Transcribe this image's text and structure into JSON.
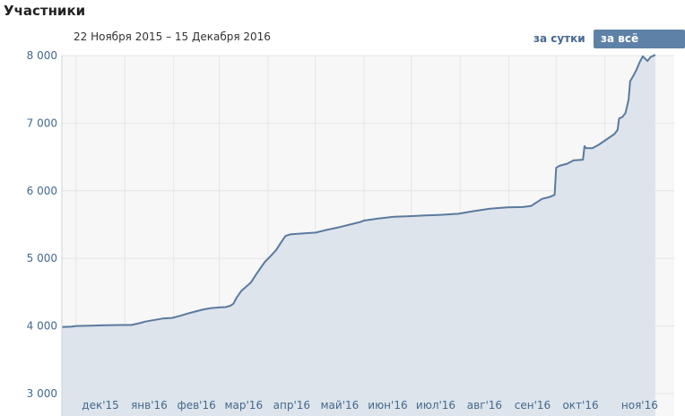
{
  "header": {
    "title": "Участники",
    "date_range": "22 Ноября 2015 – 15 Декабря 2016",
    "button_day": "за сутки",
    "button_all": "за всё время"
  },
  "colors": {
    "line": "#5b7a9e",
    "area": "#dde4ec",
    "plot_bg": "#f7f7f7",
    "grid": "#e6e6e6",
    "tick_text": "#45688e",
    "active_button": "#5e81a8"
  },
  "chart_data": {
    "type": "area",
    "title": "Участники",
    "xlabel": "",
    "ylabel": "",
    "ylim": [
      3000,
      8000
    ],
    "yticks": [
      3000,
      4000,
      5000,
      6000,
      7000,
      8000
    ],
    "ytick_labels": [
      "3 000",
      "4 000",
      "5 000",
      "6 000",
      "7 000",
      "8 000"
    ],
    "xlim": [
      "2015-11-22",
      "2016-12-15"
    ],
    "month_ticks": [
      {
        "date": "2015-12-01",
        "label": "дек'15"
      },
      {
        "date": "2016-01-01",
        "label": "янв'16"
      },
      {
        "date": "2016-02-01",
        "label": "фев'16"
      },
      {
        "date": "2016-03-01",
        "label": "мар'16"
      },
      {
        "date": "2016-04-01",
        "label": "апр'16"
      },
      {
        "date": "2016-05-01",
        "label": "май'16"
      },
      {
        "date": "2016-06-01",
        "label": "июн'16"
      },
      {
        "date": "2016-07-01",
        "label": "июл'16"
      },
      {
        "date": "2016-08-01",
        "label": "авг'16"
      },
      {
        "date": "2016-09-01",
        "label": "сен'16"
      },
      {
        "date": "2016-10-01",
        "label": "окт'16"
      },
      {
        "date": "2016-11-01",
        "label": "ноя'16"
      }
    ],
    "grid": true,
    "series": [
      {
        "points": [
          [
            "2015-11-22",
            3985
          ],
          [
            "2015-11-28",
            3990
          ],
          [
            "2015-12-01",
            4000
          ],
          [
            "2015-12-10",
            4005
          ],
          [
            "2015-12-20",
            4012
          ],
          [
            "2015-12-31",
            4015
          ],
          [
            "2016-01-05",
            4015
          ],
          [
            "2016-01-10",
            4040
          ],
          [
            "2016-01-14",
            4065
          ],
          [
            "2016-01-20",
            4090
          ],
          [
            "2016-01-25",
            4110
          ],
          [
            "2016-01-31",
            4120
          ],
          [
            "2016-02-05",
            4150
          ],
          [
            "2016-02-10",
            4185
          ],
          [
            "2016-02-15",
            4215
          ],
          [
            "2016-02-20",
            4245
          ],
          [
            "2016-02-25",
            4265
          ],
          [
            "2016-03-01",
            4275
          ],
          [
            "2016-03-05",
            4280
          ],
          [
            "2016-03-08",
            4300
          ],
          [
            "2016-03-10",
            4330
          ],
          [
            "2016-03-12",
            4420
          ],
          [
            "2016-03-15",
            4520
          ],
          [
            "2016-03-18",
            4580
          ],
          [
            "2016-03-21",
            4640
          ],
          [
            "2016-03-24",
            4750
          ],
          [
            "2016-03-27",
            4850
          ],
          [
            "2016-03-30",
            4950
          ],
          [
            "2016-04-02",
            5020
          ],
          [
            "2016-04-06",
            5120
          ],
          [
            "2016-04-09",
            5230
          ],
          [
            "2016-04-12",
            5330
          ],
          [
            "2016-04-15",
            5355
          ],
          [
            "2016-04-20",
            5365
          ],
          [
            "2016-04-27",
            5375
          ],
          [
            "2016-05-01",
            5380
          ],
          [
            "2016-05-08",
            5420
          ],
          [
            "2016-05-15",
            5455
          ],
          [
            "2016-05-22",
            5495
          ],
          [
            "2016-05-29",
            5535
          ],
          [
            "2016-06-01",
            5560
          ],
          [
            "2016-06-10",
            5590
          ],
          [
            "2016-06-20",
            5615
          ],
          [
            "2016-06-30",
            5625
          ],
          [
            "2016-07-10",
            5635
          ],
          [
            "2016-07-20",
            5645
          ],
          [
            "2016-07-31",
            5660
          ],
          [
            "2016-08-10",
            5700
          ],
          [
            "2016-08-20",
            5735
          ],
          [
            "2016-08-31",
            5755
          ],
          [
            "2016-09-10",
            5760
          ],
          [
            "2016-09-15",
            5775
          ],
          [
            "2016-09-18",
            5820
          ],
          [
            "2016-09-22",
            5880
          ],
          [
            "2016-09-27",
            5910
          ],
          [
            "2016-09-30",
            5940
          ],
          [
            "2016-10-01",
            6340
          ],
          [
            "2016-10-03",
            6370
          ],
          [
            "2016-10-08",
            6400
          ],
          [
            "2016-10-12",
            6450
          ],
          [
            "2016-10-18",
            6460
          ],
          [
            "2016-10-19",
            6660
          ],
          [
            "2016-10-20",
            6630
          ],
          [
            "2016-10-24",
            6630
          ],
          [
            "2016-10-28",
            6680
          ],
          [
            "2016-11-02",
            6760
          ],
          [
            "2016-11-07",
            6840
          ],
          [
            "2016-11-09",
            6900
          ],
          [
            "2016-11-10",
            7070
          ],
          [
            "2016-11-12",
            7090
          ],
          [
            "2016-11-14",
            7150
          ],
          [
            "2016-11-16",
            7350
          ],
          [
            "2016-11-17",
            7620
          ],
          [
            "2016-11-19",
            7700
          ],
          [
            "2016-11-21",
            7790
          ],
          [
            "2016-11-23",
            7900
          ],
          [
            "2016-11-25",
            7990
          ],
          [
            "2016-11-28",
            7920
          ],
          [
            "2016-11-30",
            7980
          ],
          [
            "2016-12-03",
            8010
          ]
        ]
      }
    ]
  }
}
